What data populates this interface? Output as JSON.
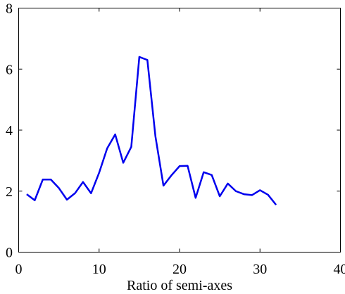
{
  "chart_data": {
    "type": "line",
    "title": "",
    "xlabel": "Ratio of semi-axes",
    "ylabel": "",
    "xlim": [
      0,
      40
    ],
    "ylim": [
      0,
      8
    ],
    "xticks": [
      0,
      10,
      20,
      30,
      40
    ],
    "yticks": [
      0,
      2,
      4,
      6,
      8
    ],
    "grid": false,
    "legend": "none",
    "series": [
      {
        "color": "#0000ee",
        "x": [
          1,
          2,
          3,
          4,
          5,
          6,
          7,
          8,
          9,
          10,
          11,
          12,
          13,
          14,
          15,
          16,
          17,
          18,
          19,
          20,
          21,
          22,
          23,
          24,
          25,
          26,
          27,
          28,
          29,
          30,
          31,
          32
        ],
        "y": [
          1.9,
          1.7,
          2.38,
          2.38,
          2.1,
          1.72,
          1.93,
          2.3,
          1.93,
          2.6,
          3.4,
          3.86,
          2.93,
          3.45,
          6.4,
          6.3,
          3.8,
          2.18,
          2.52,
          2.82,
          2.83,
          1.78,
          2.62,
          2.53,
          1.83,
          2.25,
          2.0,
          1.9,
          1.87,
          2.03,
          1.88,
          1.55
        ]
      }
    ]
  }
}
